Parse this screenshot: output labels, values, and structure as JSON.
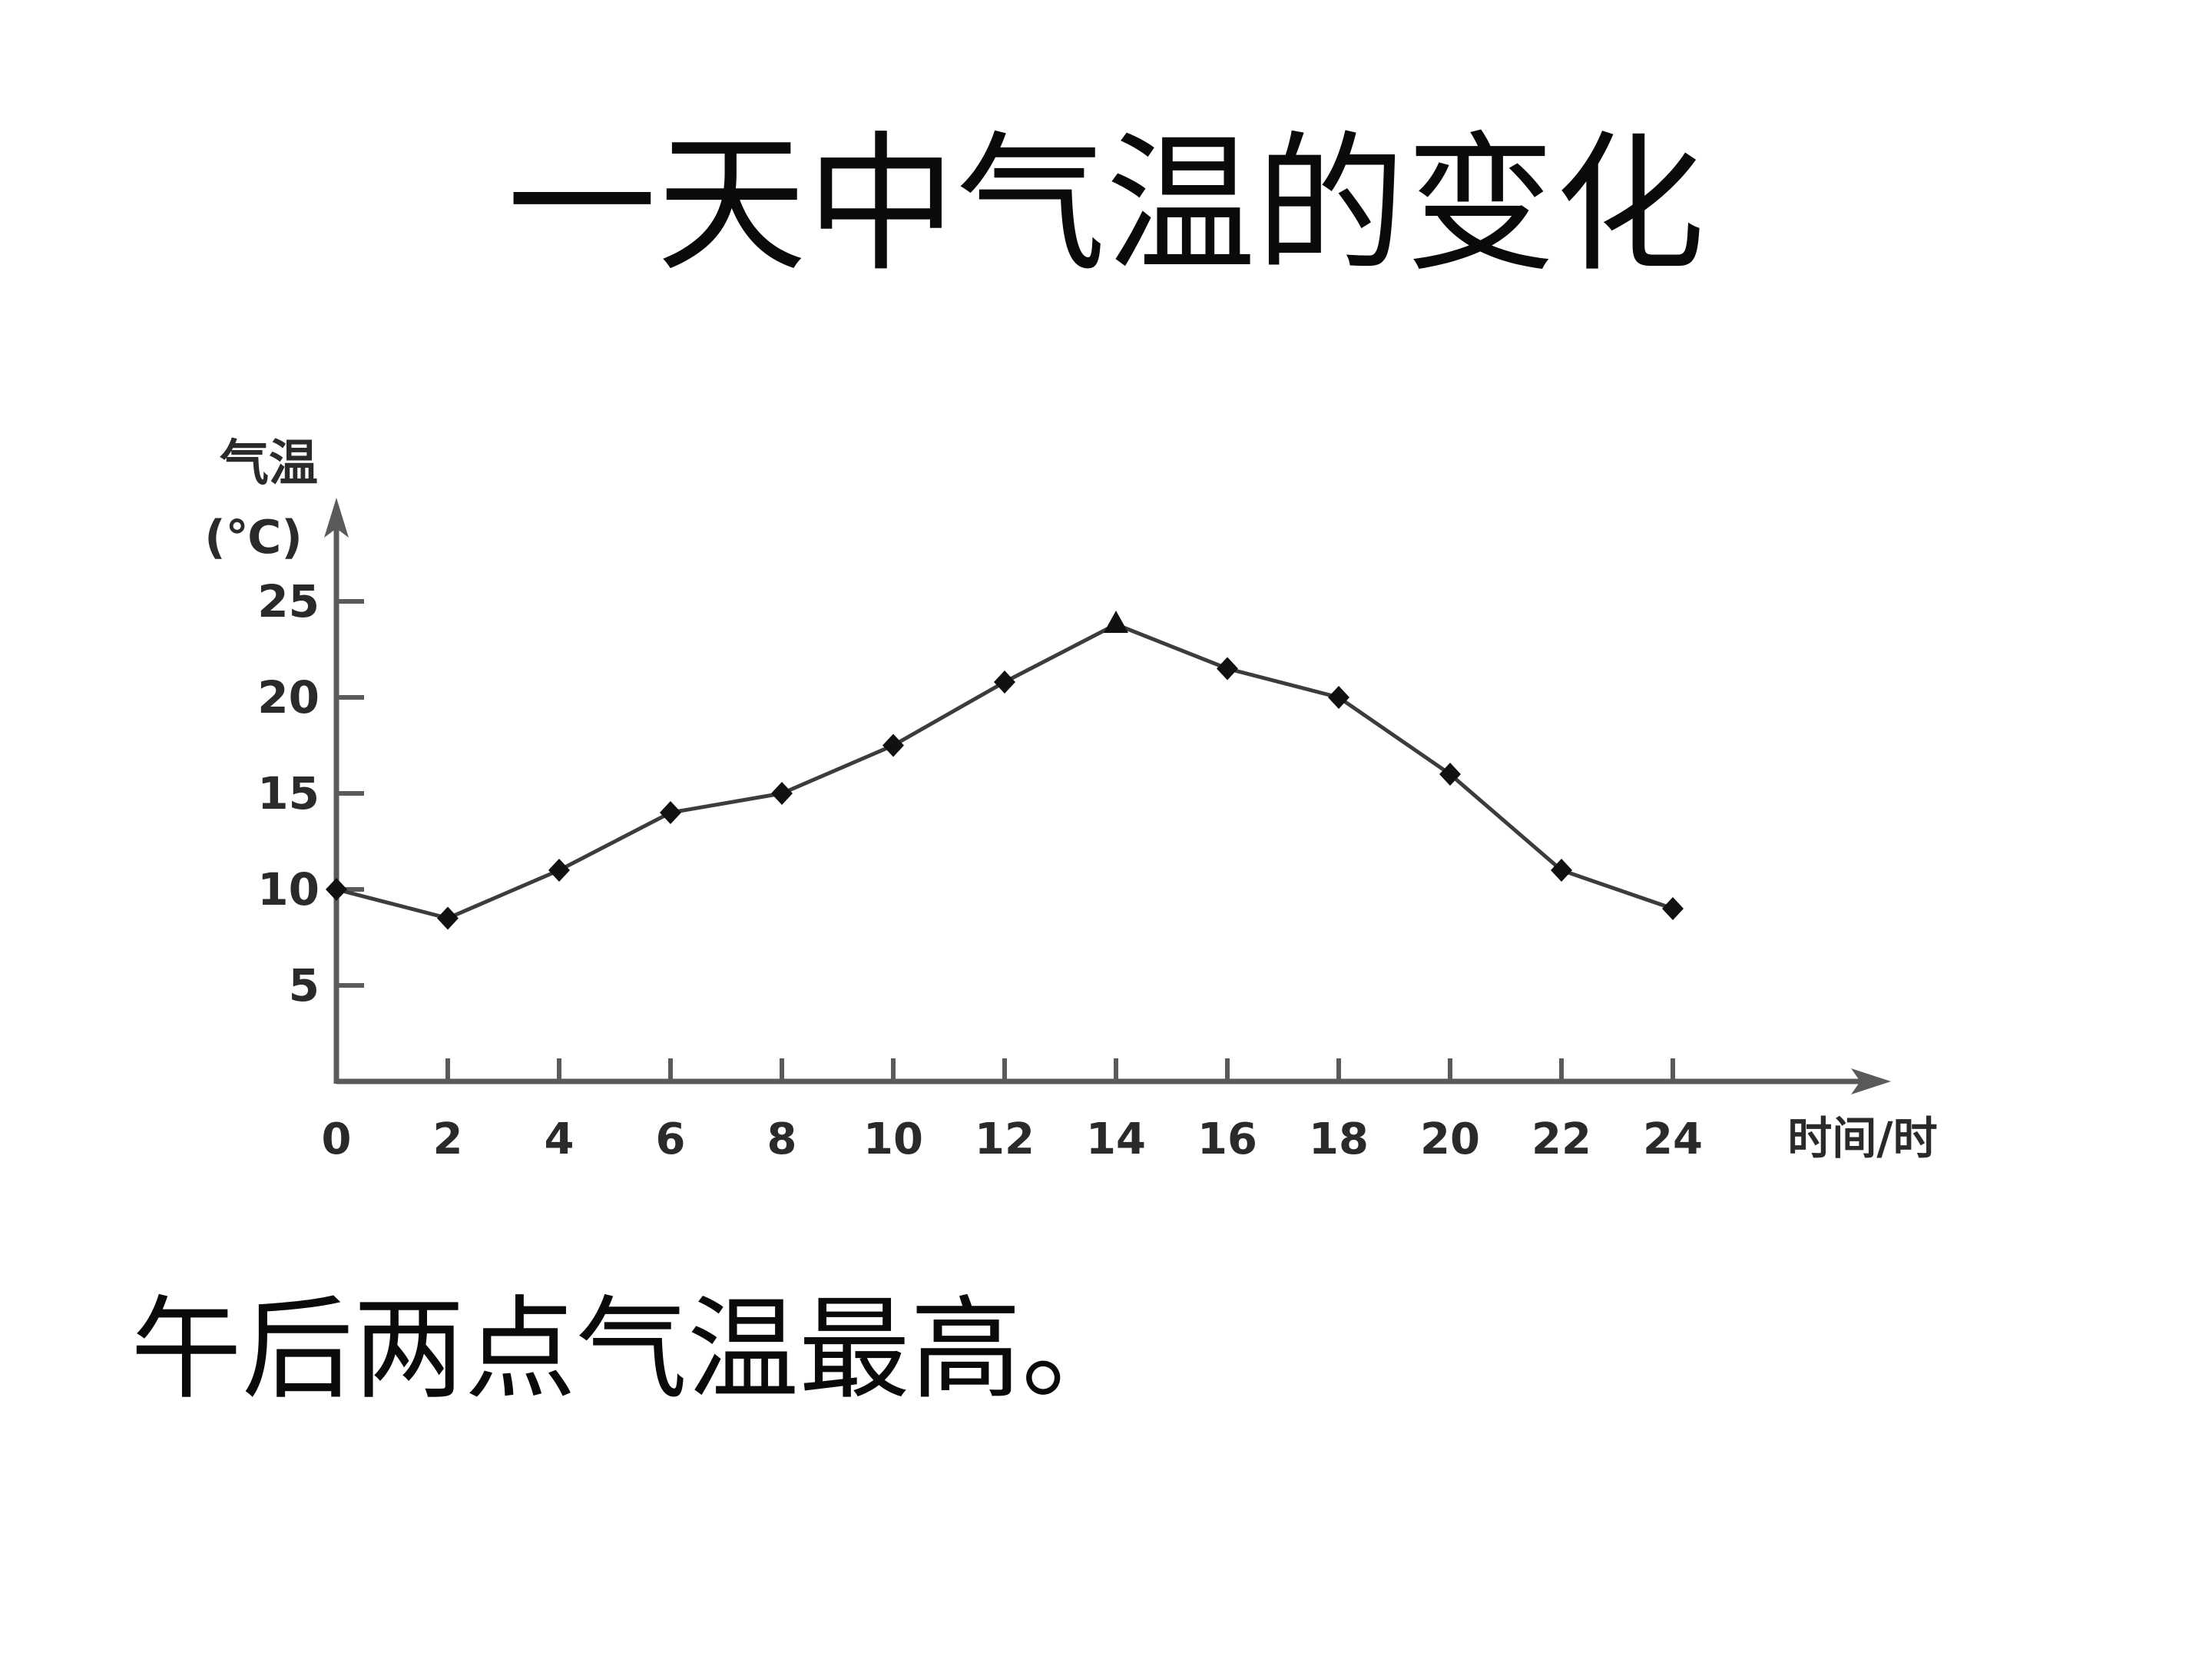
{
  "slide": {
    "title": "一天中气温的变化",
    "caption": "午后两点气温最高。"
  },
  "chart_data": {
    "type": "line",
    "x": [
      0,
      2,
      4,
      6,
      8,
      10,
      12,
      14,
      16,
      18,
      20,
      22,
      24
    ],
    "values": [
      10,
      8.5,
      11,
      14,
      15,
      17.5,
      20.8,
      23.8,
      21.5,
      20,
      16,
      11,
      9
    ],
    "series_name": "气温",
    "xlabel": "时间/时",
    "ylabel_line1": "气温",
    "ylabel_line2": "(℃)",
    "xticks": [
      0,
      2,
      4,
      6,
      8,
      10,
      12,
      14,
      16,
      18,
      20,
      22,
      24
    ],
    "yticks": [
      5,
      10,
      15,
      20,
      25
    ],
    "xlim": [
      0,
      27.5
    ],
    "ylim": [
      0,
      30
    ],
    "grid": false,
    "legend": "none",
    "peak_annotation": "max at 14:00",
    "colors": {
      "axis": "#5a5a5a",
      "line": "#3c3c3c",
      "marker": "#111111",
      "tick_text": "#2a2a2a",
      "title_text": "#0a0a0a",
      "background": "#ffffff"
    }
  }
}
